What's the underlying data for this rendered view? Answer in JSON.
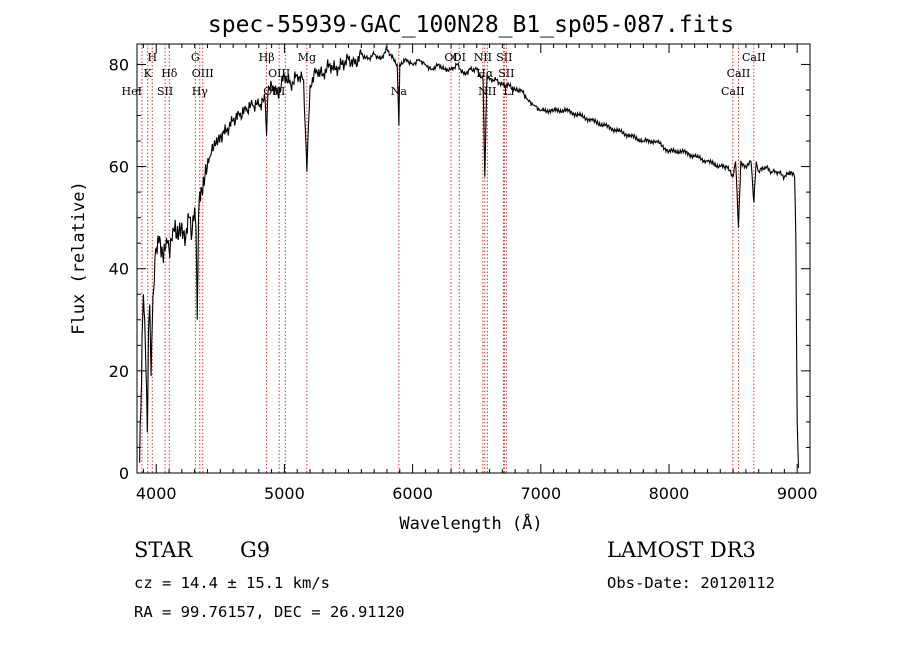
{
  "chart_data": {
    "type": "line",
    "title": "spec-55939-GAC_100N28_B1_sp05-087.fits",
    "xlabel": "Wavelength (Å)",
    "ylabel": "Flux (relative)",
    "xlim": [
      3850,
      9100
    ],
    "ylim": [
      0,
      84
    ],
    "xticks": [
      4000,
      5000,
      6000,
      7000,
      8000,
      9000
    ],
    "yticks": [
      0,
      20,
      40,
      60,
      80
    ],
    "series": [
      {
        "name": "spectrum",
        "x": [
          3870,
          3880,
          3890,
          3900,
          3910,
          3920,
          3930,
          3940,
          3950,
          3960,
          3970,
          3980,
          3990,
          4000,
          4020,
          4050,
          4080,
          4100,
          4130,
          4160,
          4200,
          4230,
          4260,
          4280,
          4300,
          4310,
          4320,
          4330,
          4340,
          4350,
          4380,
          4420,
          4460,
          4500,
          4550,
          4600,
          4650,
          4700,
          4750,
          4800,
          4850,
          4861,
          4870,
          4900,
          4950,
          5000,
          5050,
          5100,
          5150,
          5175,
          5200,
          5250,
          5300,
          5350,
          5400,
          5450,
          5500,
          5550,
          5600,
          5650,
          5700,
          5750,
          5800,
          5850,
          5880,
          5893,
          5900,
          5950,
          6000,
          6050,
          6100,
          6150,
          6200,
          6250,
          6300,
          6350,
          6400,
          6450,
          6500,
          6550,
          6563,
          6580,
          6600,
          6650,
          6700,
          6750,
          6800,
          6850,
          6900,
          6950,
          7000,
          7100,
          7200,
          7300,
          7400,
          7500,
          7600,
          7700,
          7800,
          7900,
          8000,
          8100,
          8200,
          8300,
          8400,
          8450,
          8498,
          8520,
          8542,
          8560,
          8600,
          8640,
          8662,
          8680,
          8700,
          8750,
          8800,
          8850,
          8900,
          8950,
          8980,
          8990,
          9000,
          9010
        ],
        "values": [
          2,
          12,
          27,
          35,
          30,
          20,
          8,
          28,
          33,
          19,
          30,
          36,
          42,
          44,
          45,
          43,
          46,
          44,
          48,
          46,
          49,
          46,
          50,
          47,
          52,
          48,
          30,
          50,
          55,
          56,
          58,
          62,
          64,
          66,
          67,
          69,
          70,
          71,
          72,
          72,
          73,
          66,
          74,
          76,
          74,
          78,
          76,
          78,
          77,
          59,
          76,
          79,
          78,
          80,
          79,
          80,
          81,
          80,
          82,
          81,
          82,
          81,
          83,
          81,
          80,
          68,
          80,
          81,
          80,
          81,
          80,
          79,
          80,
          79,
          79,
          80,
          78,
          79,
          79,
          77,
          58,
          78,
          77,
          77,
          76,
          76,
          75,
          75,
          73,
          72,
          71,
          71,
          71,
          70,
          69,
          68,
          67,
          66,
          65,
          65,
          63,
          63,
          62,
          61,
          60,
          60,
          58,
          61,
          48,
          61,
          60,
          61,
          53,
          61,
          59,
          60,
          59,
          59,
          58,
          59,
          58,
          45,
          10,
          1
        ]
      }
    ],
    "lines": [
      {
        "name": "HeI",
        "x": 3889,
        "row": 3,
        "align": "end"
      },
      {
        "name": "H",
        "x": 3969,
        "row": 1,
        "align": "middle"
      },
      {
        "name": "K",
        "x": 3934,
        "row": 2,
        "align": "middle"
      },
      {
        "name": "SII",
        "x": 4069,
        "row": 3,
        "align": "middle"
      },
      {
        "name": "Hδ",
        "x": 4102,
        "row": 2,
        "align": "middle"
      },
      {
        "name": "G",
        "x": 4305,
        "row": 1,
        "align": "middle"
      },
      {
        "name": "OIII",
        "x": 4363,
        "row": 2,
        "align": "middle"
      },
      {
        "name": "Hγ",
        "x": 4340,
        "row": 3,
        "align": "middle"
      },
      {
        "name": "Hβ",
        "x": 4861,
        "row": 1,
        "align": "middle"
      },
      {
        "name": "OIII",
        "x": 4959,
        "row": 2,
        "align": "middle"
      },
      {
        "name": "OIII",
        "x": 5007,
        "row": 3,
        "align": "end"
      },
      {
        "name": "Mg",
        "x": 5175,
        "row": 1,
        "align": "middle"
      },
      {
        "name": "Na",
        "x": 5893,
        "row": 3,
        "align": "middle"
      },
      {
        "name": "OI",
        "x": 6300,
        "row": 1,
        "align": "middle"
      },
      {
        "name": "OI",
        "x": 6364,
        "row": 1,
        "align": "middle"
      },
      {
        "name": "NII",
        "x": 6548,
        "row": 1,
        "align": "middle"
      },
      {
        "name": "Hα",
        "x": 6563,
        "row": 2,
        "align": "middle"
      },
      {
        "name": "NII",
        "x": 6583,
        "row": 3,
        "align": "middle"
      },
      {
        "name": "SII",
        "x": 6716,
        "row": 1,
        "align": "middle"
      },
      {
        "name": "SII",
        "x": 6731,
        "row": 2,
        "align": "middle"
      },
      {
        "name": "Li",
        "x": 6708,
        "row": 3,
        "align": "start"
      },
      {
        "name": "CaII",
        "x": 8498,
        "row": 3,
        "align": "middle"
      },
      {
        "name": "CaII",
        "x": 8542,
        "row": 2,
        "align": "middle"
      },
      {
        "name": "CaII",
        "x": 8662,
        "row": 1,
        "align": "middle"
      }
    ]
  },
  "info": {
    "class_label": "STAR",
    "subclass": "G9",
    "survey": "LAMOST DR3",
    "cz_line": "cz = 14.4 ± 15.1 km/s",
    "obs_line": "Obs-Date: 20120112",
    "radec_line": "RA =  99.76157, DEC =  26.91120"
  },
  "colors": {
    "marker": "#cc2222",
    "spectrum": "#000000"
  }
}
